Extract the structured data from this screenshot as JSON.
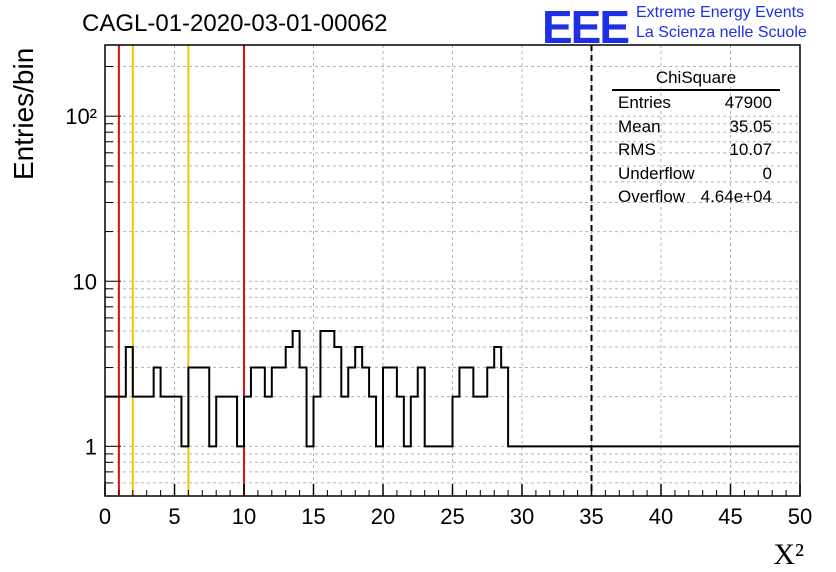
{
  "title": "CAGL-01-2020-03-01-00062",
  "logo": {
    "mark": "EEE",
    "line1": "Extreme Energy Events",
    "line2": "La Scienza nelle Scuole",
    "color": "#1f2fe6"
  },
  "stats": {
    "name": "ChiSquare",
    "rows": [
      {
        "key": "Entries",
        "value": "47900"
      },
      {
        "key": "Mean",
        "value": "35.05"
      },
      {
        "key": "RMS",
        "value": "10.07"
      },
      {
        "key": "Underflow",
        "value": "0"
      },
      {
        "key": "Overflow",
        "value": "4.64e+04"
      }
    ]
  },
  "chart_data": {
    "type": "histogram",
    "xlabel": "X²",
    "ylabel": "Entries/bin",
    "xlim": [
      0,
      50
    ],
    "ylim": [
      0.5,
      270
    ],
    "yscale": "log",
    "grid": true,
    "bin_width": 0.5,
    "x_ticks": [
      0,
      5,
      10,
      15,
      20,
      25,
      30,
      35,
      40,
      45,
      50
    ],
    "y_ticks": [
      {
        "value": 1,
        "label": "1"
      },
      {
        "value": 10,
        "label": "10"
      },
      {
        "value": 100,
        "label": "10²"
      }
    ],
    "values": [
      2,
      2,
      2,
      4,
      2,
      2,
      2,
      3,
      2,
      2,
      2,
      1,
      3,
      3,
      3,
      1,
      2,
      2,
      2,
      1,
      2,
      3,
      3,
      2,
      3,
      3,
      4,
      5,
      3,
      1,
      2,
      5,
      5,
      4,
      2,
      3,
      4,
      3,
      2,
      1,
      3,
      3,
      2,
      1,
      2,
      3,
      1,
      1,
      1,
      1,
      2,
      3,
      3,
      2,
      2,
      3,
      4,
      3,
      1,
      1,
      1,
      1,
      1,
      1,
      1,
      1,
      1,
      1,
      1,
      1,
      1,
      1,
      1,
      1,
      1,
      1,
      1,
      1,
      1,
      1,
      1,
      1,
      1,
      1,
      1,
      1,
      1,
      1,
      1,
      1,
      1,
      1,
      1,
      1,
      1,
      1,
      1,
      1,
      1,
      1
    ],
    "vlines": [
      {
        "x": 1,
        "color": "#e01010",
        "style": "solid"
      },
      {
        "x": 2,
        "color": "#f5c400",
        "style": "solid"
      },
      {
        "x": 6,
        "color": "#f5c400",
        "style": "solid"
      },
      {
        "x": 10,
        "color": "#e01010",
        "style": "solid"
      },
      {
        "x": 35,
        "color": "#000000",
        "style": "dashed"
      }
    ]
  }
}
